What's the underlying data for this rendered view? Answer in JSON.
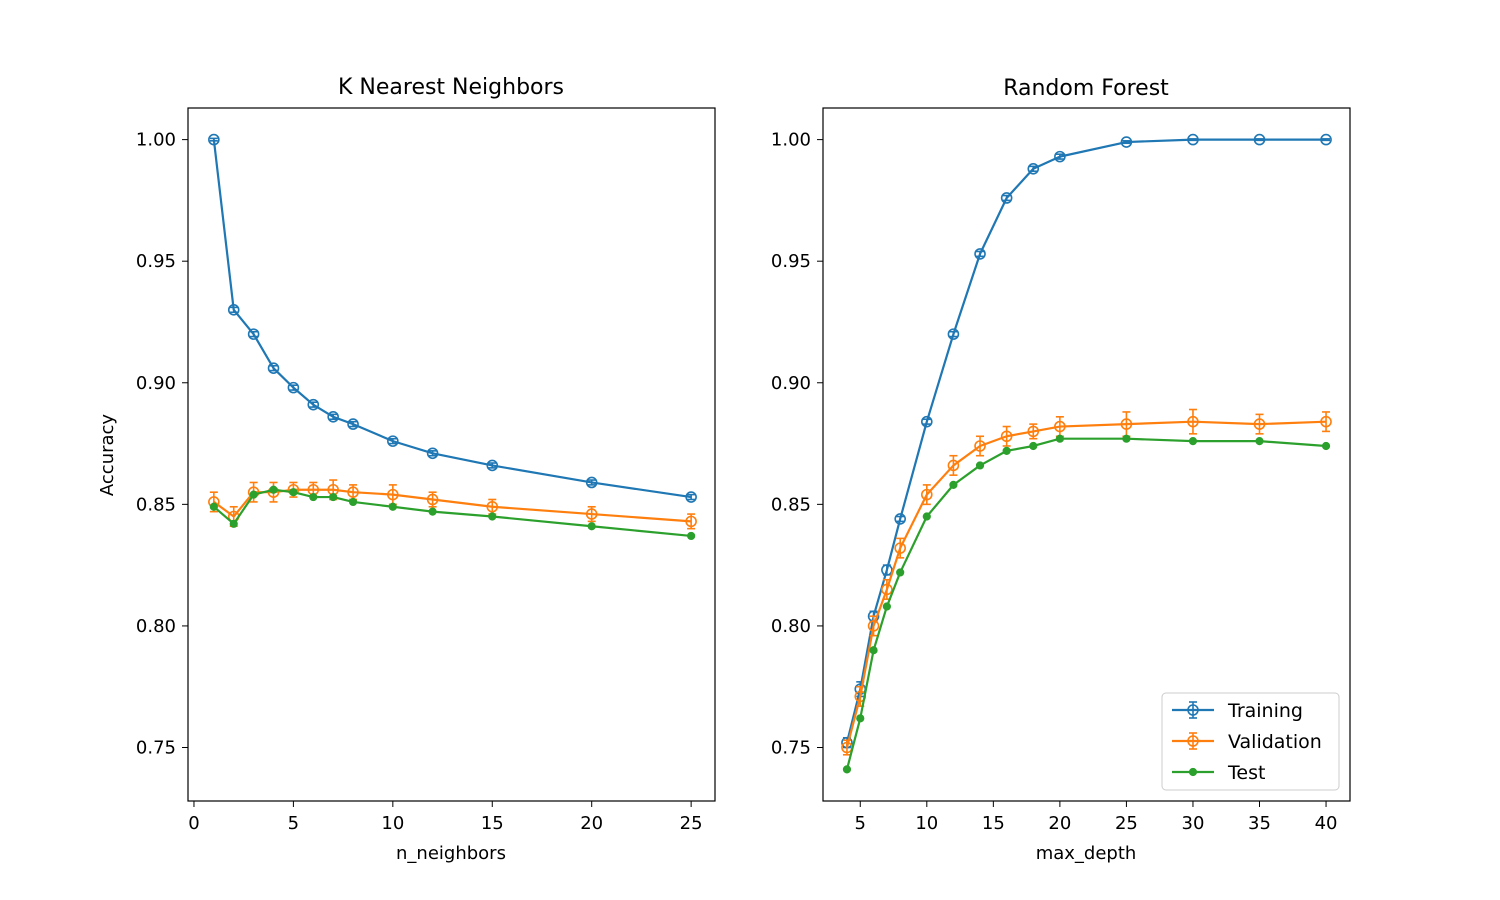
{
  "chart_data": [
    {
      "type": "line",
      "title": "K Nearest Neighbors",
      "xlabel": "n_neighbors",
      "ylabel": "Accuracy",
      "xlim": [
        -0.3,
        26.2
      ],
      "ylim": [
        0.728,
        1.013
      ],
      "xticks": [
        0,
        5,
        10,
        15,
        20,
        25
      ],
      "yticks": [
        0.75,
        0.8,
        0.85,
        0.9,
        0.95,
        1.0
      ],
      "x": [
        1,
        2,
        3,
        4,
        5,
        6,
        7,
        8,
        10,
        12,
        15,
        20,
        25
      ],
      "series": [
        {
          "name": "Training",
          "color": "#1f77b4",
          "marker": "open-circle",
          "values": [
            1.0,
            0.93,
            0.92,
            0.906,
            0.898,
            0.891,
            0.886,
            0.883,
            0.876,
            0.871,
            0.866,
            0.859,
            0.853
          ],
          "errors": [
            0.0005,
            0.001,
            0.001,
            0.001,
            0.001,
            0.001,
            0.001,
            0.001,
            0.001,
            0.001,
            0.001,
            0.001,
            0.001
          ]
        },
        {
          "name": "Validation",
          "color": "#ff7f0e",
          "marker": "open-circle",
          "values": [
            0.851,
            0.845,
            0.855,
            0.855,
            0.856,
            0.856,
            0.856,
            0.855,
            0.854,
            0.852,
            0.849,
            0.846,
            0.843
          ],
          "errors": [
            0.004,
            0.004,
            0.004,
            0.004,
            0.003,
            0.003,
            0.004,
            0.003,
            0.004,
            0.003,
            0.003,
            0.003,
            0.003
          ]
        },
        {
          "name": "Test",
          "color": "#2ca02c",
          "marker": "dot",
          "values": [
            0.849,
            0.842,
            0.854,
            0.856,
            0.855,
            0.853,
            0.853,
            0.851,
            0.849,
            0.847,
            0.845,
            0.841,
            0.837
          ],
          "errors": null
        }
      ]
    },
    {
      "type": "line",
      "title": "Random Forest",
      "xlabel": "max_depth",
      "ylabel": "",
      "xlim": [
        2.2,
        41.8
      ],
      "ylim": [
        0.728,
        1.013
      ],
      "xticks": [
        5,
        10,
        15,
        20,
        25,
        30,
        35,
        40
      ],
      "yticks": [
        0.75,
        0.8,
        0.85,
        0.9,
        0.95,
        1.0
      ],
      "x": [
        4,
        5,
        6,
        7,
        8,
        10,
        12,
        14,
        16,
        18,
        20,
        25,
        30,
        35,
        40
      ],
      "legend": {
        "position": "lower-right",
        "entries": [
          "Training",
          "Validation",
          "Test"
        ]
      },
      "series": [
        {
          "name": "Training",
          "color": "#1f77b4",
          "marker": "open-circle",
          "values": [
            0.752,
            0.774,
            0.804,
            0.823,
            0.844,
            0.884,
            0.92,
            0.953,
            0.976,
            0.988,
            0.993,
            0.999,
            1.0,
            1.0,
            1.0
          ],
          "errors": [
            0.002,
            0.003,
            0.002,
            0.002,
            0.001,
            0.001,
            0.001,
            0.001,
            0.001,
            0.001,
            0.001,
            0.0005,
            0.0003,
            0.0003,
            0.0003
          ]
        },
        {
          "name": "Validation",
          "color": "#ff7f0e",
          "marker": "open-circle",
          "values": [
            0.75,
            0.771,
            0.8,
            0.815,
            0.832,
            0.854,
            0.866,
            0.874,
            0.878,
            0.88,
            0.882,
            0.883,
            0.884,
            0.883,
            0.884
          ],
          "errors": [
            0.003,
            0.004,
            0.004,
            0.004,
            0.004,
            0.004,
            0.004,
            0.004,
            0.004,
            0.003,
            0.004,
            0.005,
            0.005,
            0.004,
            0.004
          ]
        },
        {
          "name": "Test",
          "color": "#2ca02c",
          "marker": "dot",
          "values": [
            0.741,
            0.762,
            0.79,
            0.808,
            0.822,
            0.845,
            0.858,
            0.866,
            0.872,
            0.874,
            0.877,
            0.877,
            0.876,
            0.876,
            0.874
          ],
          "errors": null
        }
      ]
    }
  ]
}
